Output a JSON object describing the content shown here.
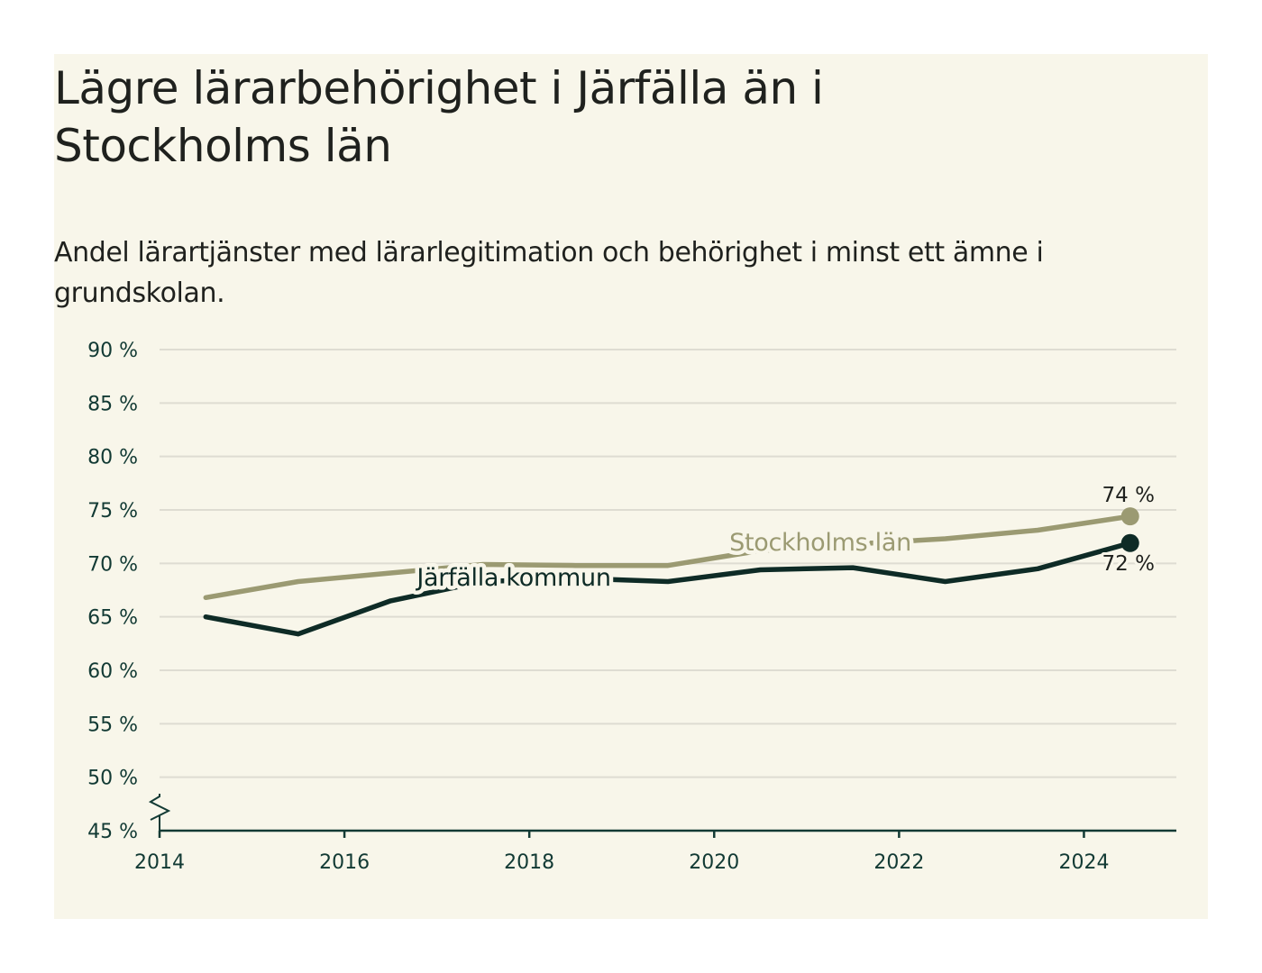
{
  "chart_data": {
    "type": "line",
    "title": "Lägre lärarbehörighet i Järfälla än i Stockholms län",
    "subtitle": "Andel lärartjänster med lärarlegitimation och behörighet i minst ett ämne i grundskolan.",
    "x": [
      2014.5,
      2015.5,
      2016.5,
      2017.5,
      2018.5,
      2019.5,
      2020.5,
      2021.5,
      2022.5,
      2023.5,
      2024.5
    ],
    "xlim": [
      2014,
      2025
    ],
    "x_ticks": [
      2014,
      2016,
      2018,
      2020,
      2022,
      2024
    ],
    "x_tick_labels": [
      "2014",
      "2016",
      "2018",
      "2020",
      "2022",
      "2024"
    ],
    "ylim": [
      45,
      90
    ],
    "y_ticks": [
      45,
      50,
      55,
      60,
      65,
      70,
      75,
      80,
      85,
      90
    ],
    "y_tick_labels": [
      "45 %",
      "50 %",
      "55 %",
      "60 %",
      "65 %",
      "70 %",
      "75 %",
      "80 %",
      "85 %",
      "90 %"
    ],
    "axis_break": true,
    "grid": true,
    "series": [
      {
        "name": "Stockholms län",
        "color": "#9b9a72",
        "values": [
          66.8,
          68.3,
          69.1,
          69.9,
          69.8,
          69.8,
          71.2,
          71.8,
          72.3,
          73.1,
          74.4
        ],
        "end_label": "74 %"
      },
      {
        "name": "Järfälla kommun",
        "color": "#0e2b26",
        "values": [
          65.0,
          63.4,
          66.5,
          68.3,
          68.6,
          68.3,
          69.4,
          69.6,
          68.3,
          69.5,
          71.9
        ],
        "end_label": "72 %"
      }
    ]
  },
  "colors": {
    "background": "#f8f6ea",
    "gridline": "#dedcd2",
    "axis": "#123a34",
    "text": "#1f211e"
  }
}
